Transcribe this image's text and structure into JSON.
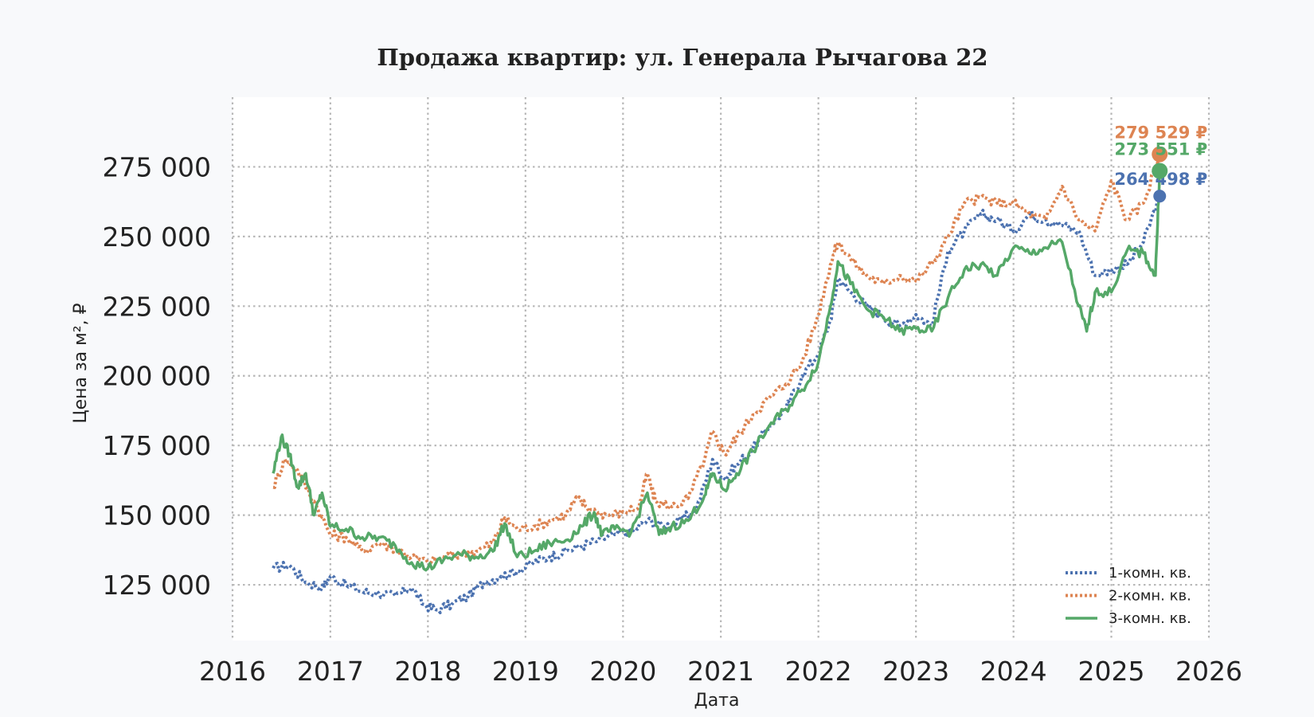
{
  "chart_data": {
    "type": "line",
    "title": "Продажа квартир: ул. Генерала Рычагова 22",
    "xlabel": "Дата",
    "ylabel": "Цена за м², ₽",
    "xlim": [
      "2016-01-01",
      "2026-01-01"
    ],
    "ylim": [
      105000,
      300000
    ],
    "x_ticks": [
      "2016",
      "2017",
      "2018",
      "2019",
      "2020",
      "2021",
      "2022",
      "2023",
      "2024",
      "2025",
      "2026"
    ],
    "y_ticks": [
      125000,
      150000,
      175000,
      200000,
      225000,
      250000,
      275000
    ],
    "y_tick_labels": [
      "125 000",
      "150 000",
      "175 000",
      "200 000",
      "225 000",
      "250 000",
      "275 000"
    ],
    "grid": true,
    "legend_position": "bottom-right",
    "series": [
      {
        "name": "1-комн. кв.",
        "color": "#4c72b0",
        "style": "dotted",
        "end_label": "264 498 ₽",
        "end_value": 264498,
        "points": [
          [
            "2016-06-01",
            131000
          ],
          [
            "2016-08-01",
            132000
          ],
          [
            "2016-10-01",
            126000
          ],
          [
            "2016-12-01",
            124000
          ],
          [
            "2017-01-01",
            128000
          ],
          [
            "2017-03-01",
            125000
          ],
          [
            "2017-05-01",
            122500
          ],
          [
            "2017-07-01",
            122000
          ],
          [
            "2017-09-01",
            121000
          ],
          [
            "2017-11-01",
            124000
          ],
          [
            "2017-12-15",
            118000
          ],
          [
            "2018-02-01",
            116000
          ],
          [
            "2018-04-01",
            118000
          ],
          [
            "2018-06-01",
            121000
          ],
          [
            "2018-08-01",
            126000
          ],
          [
            "2018-10-01",
            128000
          ],
          [
            "2018-12-01",
            130000
          ],
          [
            "2019-02-01",
            133000
          ],
          [
            "2019-04-01",
            135000
          ],
          [
            "2019-06-01",
            137000
          ],
          [
            "2019-08-01",
            139000
          ],
          [
            "2019-10-01",
            141000
          ],
          [
            "2019-12-01",
            143000
          ],
          [
            "2020-02-01",
            144000
          ],
          [
            "2020-04-01",
            148000
          ],
          [
            "2020-06-01",
            146000
          ],
          [
            "2020-08-01",
            148000
          ],
          [
            "2020-10-01",
            152000
          ],
          [
            "2020-12-01",
            170000
          ],
          [
            "2021-01-15",
            163000
          ],
          [
            "2021-03-01",
            168000
          ],
          [
            "2021-05-01",
            174000
          ],
          [
            "2021-07-01",
            182000
          ],
          [
            "2021-09-01",
            188000
          ],
          [
            "2021-11-01",
            200000
          ],
          [
            "2022-01-01",
            208000
          ],
          [
            "2022-02-15",
            220000
          ],
          [
            "2022-03-15",
            235000
          ],
          [
            "2022-05-01",
            230000
          ],
          [
            "2022-07-01",
            225000
          ],
          [
            "2022-09-01",
            221000
          ],
          [
            "2022-11-01",
            218000
          ],
          [
            "2023-01-01",
            222000
          ],
          [
            "2023-03-01",
            218000
          ],
          [
            "2023-05-01",
            245000
          ],
          [
            "2023-07-01",
            252000
          ],
          [
            "2023-09-01",
            258000
          ],
          [
            "2023-11-01",
            256000
          ],
          [
            "2024-01-01",
            252000
          ],
          [
            "2024-03-01",
            258000
          ],
          [
            "2024-05-01",
            256000
          ],
          [
            "2024-07-01",
            254000
          ],
          [
            "2024-09-01",
            252000
          ],
          [
            "2024-11-01",
            236000
          ],
          [
            "2025-01-01",
            238000
          ],
          [
            "2025-03-01",
            240000
          ],
          [
            "2025-05-01",
            248000
          ],
          [
            "2025-07-01",
            264498
          ]
        ]
      },
      {
        "name": "2-комн. кв.",
        "color": "#dd8452",
        "style": "dotted",
        "end_label": "279 529 ₽",
        "end_value": 279529,
        "points": [
          [
            "2016-06-01",
            160000
          ],
          [
            "2016-07-15",
            170000
          ],
          [
            "2016-09-01",
            166000
          ],
          [
            "2016-11-01",
            155000
          ],
          [
            "2017-01-01",
            143000
          ],
          [
            "2017-03-01",
            142000
          ],
          [
            "2017-05-01",
            137000
          ],
          [
            "2017-07-01",
            140000
          ],
          [
            "2017-09-01",
            138000
          ],
          [
            "2017-11-01",
            135000
          ],
          [
            "2018-01-01",
            133000
          ],
          [
            "2018-03-01",
            135000
          ],
          [
            "2018-05-01",
            136000
          ],
          [
            "2018-07-01",
            137000
          ],
          [
            "2018-09-01",
            140000
          ],
          [
            "2018-10-15",
            149000
          ],
          [
            "2018-12-01",
            145000
          ],
          [
            "2019-02-01",
            146000
          ],
          [
            "2019-04-01",
            148000
          ],
          [
            "2019-06-01",
            150000
          ],
          [
            "2019-07-15",
            156000
          ],
          [
            "2019-09-01",
            152000
          ],
          [
            "2019-11-01",
            150000
          ],
          [
            "2020-01-01",
            151000
          ],
          [
            "2020-03-01",
            153000
          ],
          [
            "2020-04-01",
            165000
          ],
          [
            "2020-05-01",
            155000
          ],
          [
            "2020-07-01",
            153000
          ],
          [
            "2020-09-01",
            156000
          ],
          [
            "2020-11-01",
            170000
          ],
          [
            "2020-12-01",
            180000
          ],
          [
            "2021-01-15",
            172000
          ],
          [
            "2021-03-01",
            178000
          ],
          [
            "2021-05-01",
            186000
          ],
          [
            "2021-07-01",
            192000
          ],
          [
            "2021-09-01",
            197000
          ],
          [
            "2021-11-01",
            205000
          ],
          [
            "2022-01-01",
            222000
          ],
          [
            "2022-02-15",
            240000
          ],
          [
            "2022-03-15",
            248000
          ],
          [
            "2022-05-01",
            242000
          ],
          [
            "2022-07-01",
            236000
          ],
          [
            "2022-09-01",
            233000
          ],
          [
            "2022-11-01",
            236000
          ],
          [
            "2023-01-01",
            234000
          ],
          [
            "2023-03-01",
            240000
          ],
          [
            "2023-05-01",
            250000
          ],
          [
            "2023-07-01",
            262000
          ],
          [
            "2023-09-01",
            264000
          ],
          [
            "2023-11-01",
            262000
          ],
          [
            "2024-01-01",
            262000
          ],
          [
            "2024-03-01",
            258000
          ],
          [
            "2024-05-01",
            256000
          ],
          [
            "2024-07-01",
            268000
          ],
          [
            "2024-09-01",
            256000
          ],
          [
            "2024-11-01",
            252000
          ],
          [
            "2025-01-01",
            270000
          ],
          [
            "2025-03-01",
            256000
          ],
          [
            "2025-05-01",
            262000
          ],
          [
            "2025-07-01",
            279529
          ]
        ]
      },
      {
        "name": "3-комн. кв.",
        "color": "#55a868",
        "style": "solid",
        "end_label": "273 551 ₽",
        "end_value": 273551,
        "points": [
          [
            "2016-06-01",
            165000
          ],
          [
            "2016-07-01",
            178000
          ],
          [
            "2016-08-01",
            172000
          ],
          [
            "2016-09-01",
            160000
          ],
          [
            "2016-10-01",
            165000
          ],
          [
            "2016-11-01",
            150000
          ],
          [
            "2016-12-01",
            158000
          ],
          [
            "2017-01-01",
            146000
          ],
          [
            "2017-03-01",
            145000
          ],
          [
            "2017-05-01",
            142000
          ],
          [
            "2017-07-01",
            142000
          ],
          [
            "2017-09-01",
            139000
          ],
          [
            "2017-11-01",
            133000
          ],
          [
            "2018-01-01",
            131000
          ],
          [
            "2018-03-01",
            134000
          ],
          [
            "2018-05-01",
            136000
          ],
          [
            "2018-07-01",
            135000
          ],
          [
            "2018-09-01",
            137000
          ],
          [
            "2018-10-15",
            147000
          ],
          [
            "2018-12-01",
            135000
          ],
          [
            "2019-02-01",
            137000
          ],
          [
            "2019-04-01",
            140000
          ],
          [
            "2019-06-01",
            141000
          ],
          [
            "2019-08-01",
            146000
          ],
          [
            "2019-09-15",
            151000
          ],
          [
            "2019-10-15",
            143000
          ],
          [
            "2019-12-01",
            145000
          ],
          [
            "2020-02-01",
            144000
          ],
          [
            "2020-04-01",
            158000
          ],
          [
            "2020-05-15",
            143000
          ],
          [
            "2020-07-01",
            146000
          ],
          [
            "2020-09-01",
            148000
          ],
          [
            "2020-11-01",
            157000
          ],
          [
            "2020-12-01",
            165000
          ],
          [
            "2021-01-15",
            159000
          ],
          [
            "2021-03-01",
            165000
          ],
          [
            "2021-05-01",
            173000
          ],
          [
            "2021-07-01",
            182000
          ],
          [
            "2021-09-01",
            188000
          ],
          [
            "2021-11-01",
            195000
          ],
          [
            "2022-01-01",
            205000
          ],
          [
            "2022-02-15",
            225000
          ],
          [
            "2022-03-15",
            241000
          ],
          [
            "2022-05-01",
            233000
          ],
          [
            "2022-07-01",
            224000
          ],
          [
            "2022-09-01",
            221000
          ],
          [
            "2022-11-01",
            216000
          ],
          [
            "2023-01-01",
            217000
          ],
          [
            "2023-03-01",
            216000
          ],
          [
            "2023-05-01",
            228000
          ],
          [
            "2023-07-01",
            238000
          ],
          [
            "2023-09-01",
            240000
          ],
          [
            "2023-11-01",
            236000
          ],
          [
            "2024-01-01",
            246000
          ],
          [
            "2024-03-01",
            244000
          ],
          [
            "2024-05-01",
            246000
          ],
          [
            "2024-07-01",
            248000
          ],
          [
            "2024-09-01",
            225000
          ],
          [
            "2024-10-01",
            216000
          ],
          [
            "2024-11-01",
            230000
          ],
          [
            "2025-01-01",
            230000
          ],
          [
            "2025-03-01",
            245000
          ],
          [
            "2025-05-01",
            244000
          ],
          [
            "2025-06-15",
            236000
          ],
          [
            "2025-07-01",
            273551
          ]
        ]
      }
    ]
  }
}
